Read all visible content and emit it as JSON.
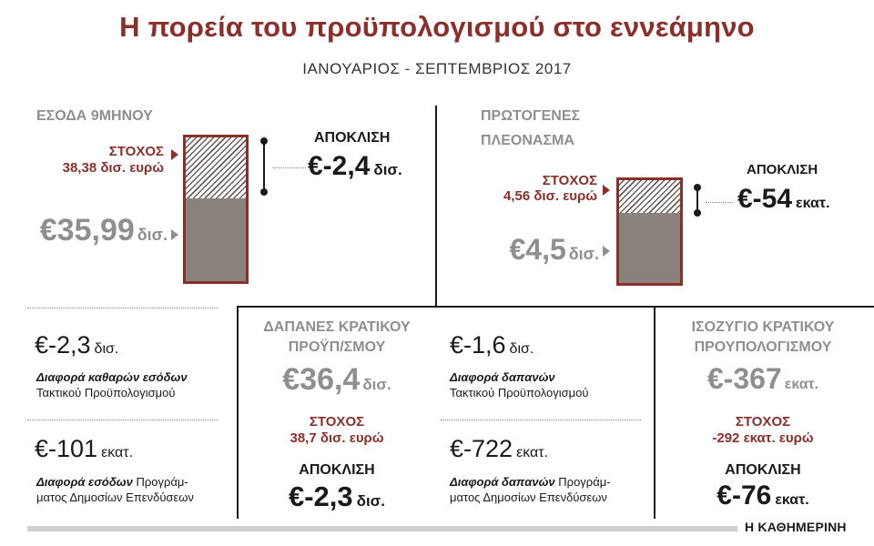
{
  "header": {
    "title": "Η πορεία του προϋπολογισμού στο εννεάμηνο",
    "subtitle": "ΙΑΝΟΥΑΡΙΟΣ - ΣΕΠΤΕΜΒΡΙΟΣ 2017"
  },
  "revenue": {
    "heading": "ΕΣΟΔΑ 9ΜΗΝΟΥ",
    "target_label": "ΣΤΟΧΟΣ",
    "target_value": "38,38 δισ. ευρώ",
    "actual_value": "€35,99",
    "actual_unit": "δισ.",
    "deviation_label": "ΑΠΟΚΛΙΣΗ",
    "deviation_value": "€-2,4",
    "deviation_unit": "δισ.",
    "bar_actual_fraction": 0.578
  },
  "primary_surplus": {
    "heading_line1": "ΠΡΩΤΟΓΕΝΕΣ",
    "heading_line2": "ΠΛΕΟΝΑΣΜΑ",
    "target_label": "ΣΤΟΧΟΣ",
    "target_value": "4,56 δισ. ευρώ",
    "actual_value": "€4,5",
    "actual_unit": "δισ.",
    "deviation_label": "ΑΠΟΚΛΙΣΗ",
    "deviation_value": "€-54",
    "deviation_unit": "εκατ.",
    "bar_actual_fraction": 0.685
  },
  "revenue_breakdown": [
    {
      "value": "€-2,3",
      "unit": "δισ.",
      "desc_bold": "Διαφορά καθαρών εσόδων",
      "desc_rest": "Τακτικού Προϋπολογισμού"
    },
    {
      "value": "€-101",
      "unit": "εκατ.",
      "desc_bold": "Διαφορά εσόδων",
      "desc_rest": "Προγράμ-\nματος Δημοσίων Επενδύσεων"
    }
  ],
  "expenditure": {
    "heading_line1": "ΔΑΠΑΝΕΣ ΚΡΑΤΙΚΟΥ",
    "heading_line2": "ΠΡΟΫΠ/ΣΜΟΥ",
    "actual_value": "€36,4",
    "actual_unit": "δισ.",
    "target_label": "ΣΤΟΧΟΣ",
    "target_value": "38,7 δισ. ευρώ",
    "deviation_label": "ΑΠΟΚΛΙΣΗ",
    "deviation_value": "€-2,3",
    "deviation_unit": "δισ."
  },
  "expenditure_breakdown": [
    {
      "value": "€-1,6",
      "unit": "δισ.",
      "desc_bold": "Διαφορά δαπανών",
      "desc_rest": "Τακτικού Προϋπολογισμού"
    },
    {
      "value": "€-722",
      "unit": "εκατ.",
      "desc_bold": "Διαφορά δαπανών",
      "desc_rest": "Προγράμ-\nματος Δημοσίων Επενδύσεων"
    }
  ],
  "balance": {
    "heading_line1": "ΙΣΟΖΥΓΙΟ ΚΡΑΤΙΚΟΥ",
    "heading_line2": "ΠΡΟΥΠΟΛΟΓΙΣΜΟΥ",
    "actual_value": "€-367",
    "actual_unit": "εκατ.",
    "target_label": "ΣΤΟΧΟΣ",
    "target_value": "-292 εκατ. ευρώ",
    "deviation_label": "ΑΠΟΚΛΙΣΗ",
    "deviation_value": "€-76",
    "deviation_unit": "εκατ."
  },
  "footer": {
    "brand": "Η ΚΑΘΗΜΕΡΙΝΗ"
  },
  "colors": {
    "accent_red": "#8b2f2a",
    "grey": "#8f8f8f",
    "bar_fill": "#8a827c"
  }
}
